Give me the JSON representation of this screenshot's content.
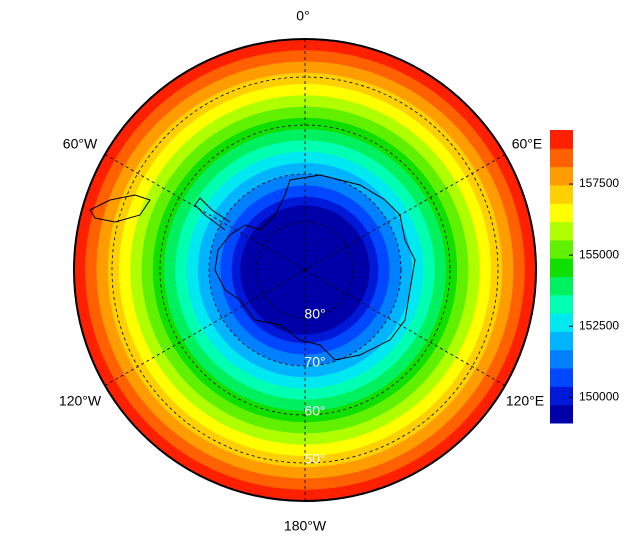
{
  "map": {
    "lon_labels": [
      "0°",
      "60°E",
      "120°E",
      "180°W",
      "120°W",
      "60°W"
    ],
    "lat_labels": [
      "80°",
      "70°",
      "60°",
      "50°"
    ]
  },
  "colorbar": {
    "range": [
      149100,
      159400
    ],
    "ticks": [
      150000,
      152500,
      155000,
      157500
    ],
    "colors": [
      "#0000a8",
      "#0018d8",
      "#0048ff",
      "#0080ff",
      "#00b4ff",
      "#00e8f0",
      "#00ffb0",
      "#00f060",
      "#10e000",
      "#60f000",
      "#b0ff00",
      "#ffff00",
      "#ffd000",
      "#ff9c00",
      "#ff6000",
      "#ff2000"
    ]
  }
}
